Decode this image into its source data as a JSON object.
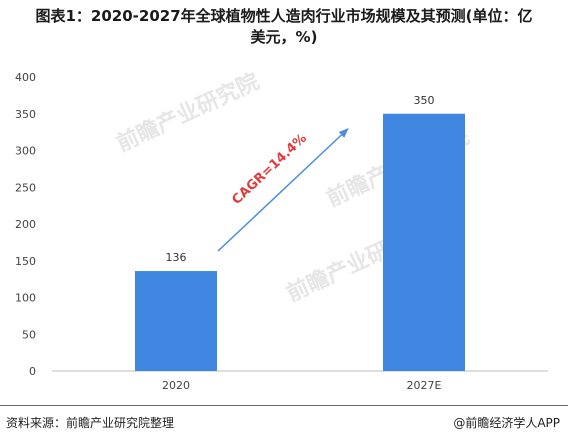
{
  "title": "图表1：2020-2027年全球植物性人造肉行业市场规模及其预测(单位：亿\n美元，%)",
  "footer": {
    "source": "资料来源：前瞻产业研究院整理",
    "brand": "@前瞻经济学人APP"
  },
  "watermark": "前瞻产业研究院",
  "colors": {
    "bar": "#3f86e0",
    "annotation": "#e23b3b",
    "arrow": "#4a8fdc",
    "grid": "#e6e6e6",
    "axis": "#bfbfbf"
  },
  "chart_data": {
    "type": "bar",
    "categories": [
      "2020",
      "2027E"
    ],
    "values": [
      136,
      350
    ],
    "ylim": [
      0,
      400
    ],
    "yticks": [
      0,
      50,
      100,
      150,
      200,
      250,
      300,
      350,
      400
    ],
    "grid": false,
    "annotation": "CAGR=14.4%"
  }
}
